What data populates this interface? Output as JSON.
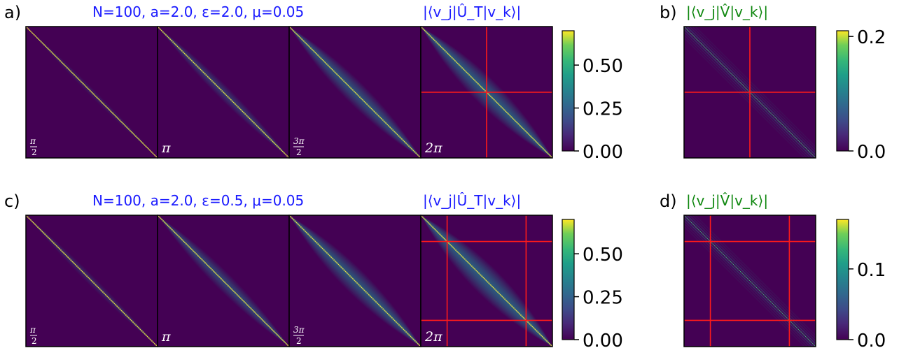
{
  "colors": {
    "bg": "#440154",
    "crosshair": "#ff1a1a",
    "param_text": "#1a1aff",
    "green_text": "#118811",
    "axis": "#000000",
    "tick_text": "#000000"
  },
  "colormap": "viridis",
  "rows": [
    {
      "panel_letter": "a)",
      "params_label": "N=100, a=2.0, ε=2.0, μ=0.05",
      "matrix_title": "|⟨v_j|Û_T|v_k⟩|",
      "panels": [
        {
          "time_label": "π/2",
          "spread": 0.15
        },
        {
          "time_label": "π",
          "spread": 0.35
        },
        {
          "time_label": "3π/2",
          "spread": 0.55
        },
        {
          "time_label": "2π",
          "spread": 0.65,
          "crosshair_index": [
            50
          ]
        }
      ],
      "colorbar": {
        "min": 0.0,
        "max": 0.7,
        "ticks": [
          "0.00",
          "0.25",
          "0.50"
        ],
        "tick_values": [
          0.0,
          0.25,
          0.5
        ]
      },
      "v_panel": {
        "letter": "b)",
        "title": "|⟨v_j|V̂|v_k⟩|",
        "crosshair_index": [
          50
        ],
        "colorbar": {
          "min": 0.0,
          "max": 0.21,
          "ticks": [
            "0.0",
            "0.2"
          ],
          "tick_values": [
            0.0,
            0.2
          ]
        }
      }
    },
    {
      "panel_letter": "c)",
      "params_label": "N=100, a=2.0, ε=0.5, μ=0.05",
      "matrix_title": "|⟨v_j|Û_T|v_k⟩|",
      "panels": [
        {
          "time_label": "π/2",
          "spread": 0.2
        },
        {
          "time_label": "π",
          "spread": 0.45
        },
        {
          "time_label": "3π/2",
          "spread": 0.6
        },
        {
          "time_label": "2π",
          "spread": 0.7,
          "crosshair_index": [
            20,
            80
          ]
        }
      ],
      "colorbar": {
        "min": 0.0,
        "max": 0.7,
        "ticks": [
          "0.00",
          "0.25",
          "0.50"
        ],
        "tick_values": [
          0.0,
          0.25,
          0.5
        ]
      },
      "v_panel": {
        "letter": "d)",
        "title": "|⟨v_j|V̂|v_k⟩|",
        "crosshair_index": [
          20,
          80
        ],
        "colorbar": {
          "min": 0.0,
          "max": 0.17,
          "ticks": [
            "0.0",
            "0.1"
          ],
          "tick_values": [
            0.0,
            0.1
          ]
        }
      }
    }
  ]
}
